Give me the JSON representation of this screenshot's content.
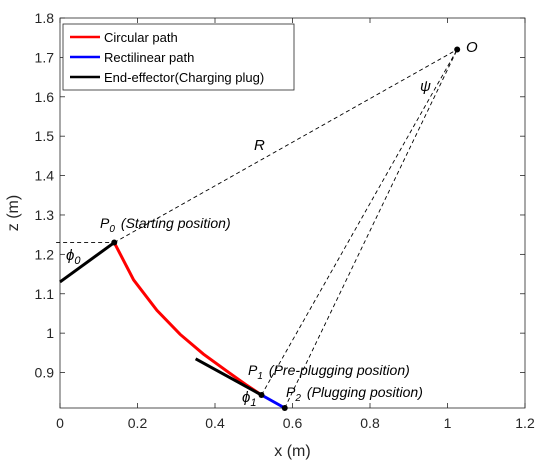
{
  "chart_data": {
    "type": "line",
    "title": "",
    "xlabel": "x (m)",
    "ylabel": "z (m)",
    "xlim": [
      0,
      1.2
    ],
    "ylim": [
      0.81,
      1.8
    ],
    "xticks": [
      0,
      0.2,
      0.4,
      0.6,
      0.8,
      1,
      1.2
    ],
    "yticks": [
      0.9,
      1,
      1.1,
      1.2,
      1.3,
      1.4,
      1.5,
      1.6,
      1.7,
      1.8
    ],
    "xtick_labels": [
      "0",
      "0.2",
      "0.4",
      "0.6",
      "0.8",
      "1",
      "1.2"
    ],
    "ytick_labels": [
      "0.9",
      "1",
      "1.1",
      "1.2",
      "1.3",
      "1.4",
      "1.5",
      "1.6",
      "1.7",
      "1.8"
    ],
    "grid": false,
    "legend_position": "top-left",
    "series": [
      {
        "name": "Circular path",
        "color": "#ff0000",
        "x": [
          0.14,
          0.19,
          0.25,
          0.31,
          0.37,
          0.43,
          0.48,
          0.52
        ],
        "y": [
          1.23,
          1.135,
          1.058,
          0.997,
          0.947,
          0.904,
          0.869,
          0.843
        ]
      },
      {
        "name": "Rectilinear path",
        "color": "#0000ff",
        "x": [
          0.52,
          0.58
        ],
        "y": [
          0.843,
          0.81
        ]
      },
      {
        "name": "End-effector(Charging plug)",
        "color": "#000000",
        "segments": [
          {
            "x": [
              0,
              0.14
            ],
            "y": [
              1.13,
              1.23
            ]
          },
          {
            "x": [
              0.35,
              0.52
            ],
            "y": [
              0.935,
              0.843
            ]
          }
        ]
      }
    ],
    "guides": [
      {
        "x": [
          0.14,
          1.025
        ],
        "y": [
          1.23,
          1.72
        ]
      },
      {
        "x": [
          0.52,
          1.025
        ],
        "y": [
          0.843,
          1.72
        ]
      },
      {
        "x": [
          0.58,
          1.025
        ],
        "y": [
          0.81,
          1.72
        ]
      },
      {
        "x": [
          -0.01,
          0.14
        ],
        "y": [
          1.23,
          1.23
        ]
      }
    ],
    "points": [
      {
        "x": 0.14,
        "y": 1.23
      },
      {
        "x": 0.52,
        "y": 0.843
      },
      {
        "x": 0.58,
        "y": 0.81
      },
      {
        "x": 1.025,
        "y": 1.72
      }
    ],
    "annotations": {
      "O": "O",
      "R": "R",
      "psi": "ψ",
      "phi0": "ϕ",
      "phi0_sub": "0",
      "phi1": "ϕ",
      "phi1_sub": "1",
      "P0": "P",
      "P0_sub": "0",
      "P0_desc": "(Starting position)",
      "P1": "P",
      "P1_sub": "1",
      "P1_desc": "(Pre-plugging position)",
      "P2": "P",
      "P2_sub": "2",
      "P2_desc": "(Plugging position)"
    }
  }
}
